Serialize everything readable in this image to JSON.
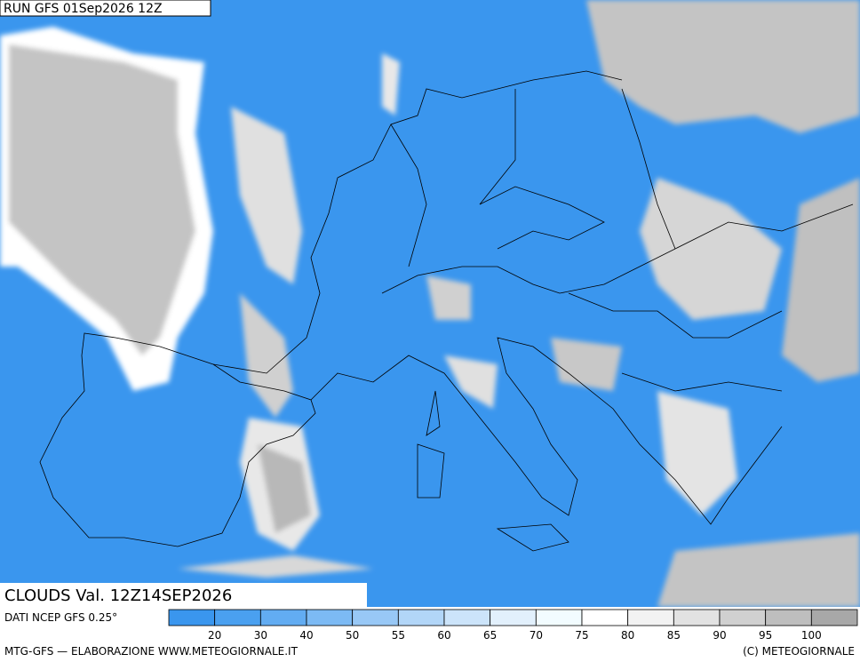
{
  "header": {
    "run": "RUN GFS 01Sep2026 12Z",
    "title": "CLOUDS Val. 12Z14SEP2026"
  },
  "footer": {
    "source": "DATI NCEP GFS 0.25°",
    "credit": "MTG-GFS — ELABORAZIONE WWW.METEOGIORNALE.IT",
    "copyright": "(C) METEOGIORNALE"
  },
  "legend": {
    "labels": [
      20,
      30,
      40,
      50,
      55,
      60,
      65,
      70,
      75,
      80,
      85,
      90,
      95,
      100
    ],
    "colors": [
      "#3a96ee",
      "#4aa0f0",
      "#62acf2",
      "#7cbaf4",
      "#98c8f6",
      "#b2d6f8",
      "#cce4fa",
      "#e2f0fc",
      "#f2fcff",
      "#ffffff",
      "#f2f2f2",
      "#e2e2e2",
      "#d0d0d0",
      "#bebebe",
      "#a8a8a8"
    ]
  }
}
